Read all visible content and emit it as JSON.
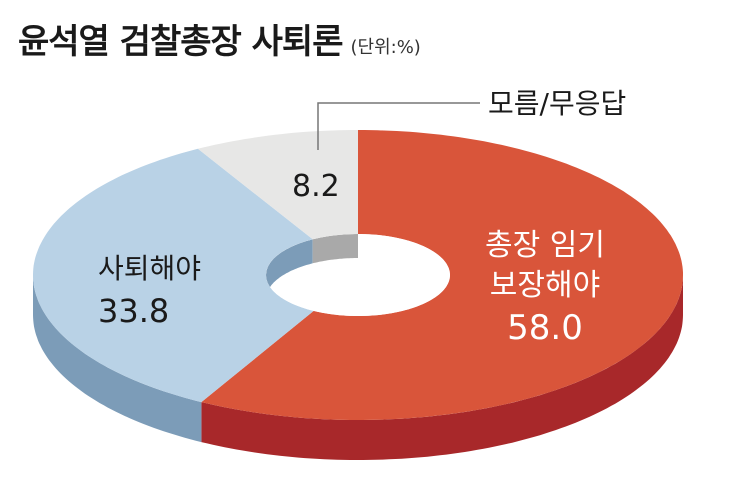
{
  "chart_data": {
    "type": "pie",
    "style": "3d-donut",
    "title": "윤석열 검찰총장 사퇴론",
    "unit": "(단위:%)",
    "slices": [
      {
        "label_lines": [
          "총장 임기",
          "보장해야"
        ],
        "value": 58.0,
        "value_text": "58.0",
        "color": "#d9553a",
        "side_color": "#a8282a"
      },
      {
        "label_lines": [
          "사퇴해야"
        ],
        "value": 33.8,
        "value_text": "33.8",
        "color": "#b9d2e6",
        "side_color": "#7c9cb8"
      },
      {
        "label_lines": [
          "모름/무응답"
        ],
        "value": 8.2,
        "value_text": "8.2",
        "color": "#e7e7e6",
        "side_color": "#a9a9a9"
      }
    ]
  }
}
